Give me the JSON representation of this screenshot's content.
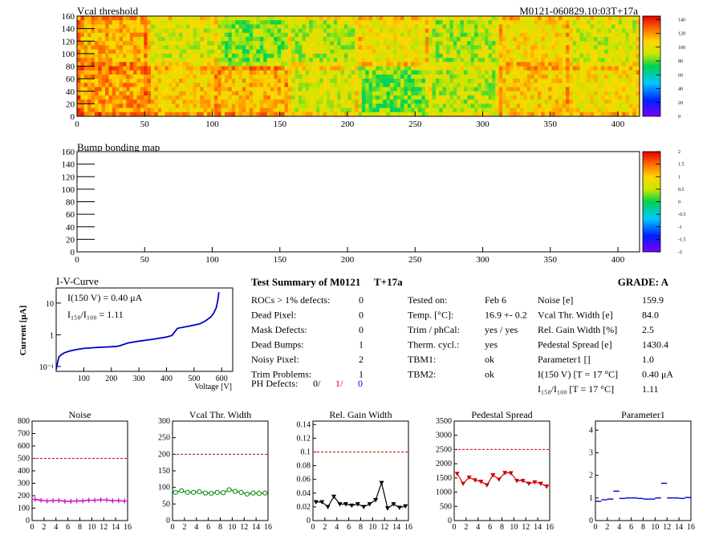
{
  "header": {
    "vcal_title": "Vcal threshold",
    "module_id": "M0121-060829.10:03T+17a",
    "bump_title": "Bump bonding map"
  },
  "map_axes": {
    "y_ticks": [
      "0",
      "20",
      "40",
      "60",
      "80",
      "100",
      "120",
      "140",
      "160"
    ],
    "x_ticks": [
      "0",
      "50",
      "100",
      "150",
      "200",
      "250",
      "300",
      "350",
      "400"
    ],
    "xlim": [
      0,
      416
    ],
    "ylim": [
      0,
      160
    ]
  },
  "vcal_colorbar": {
    "ticks": [
      "0",
      "20",
      "40",
      "60",
      "80",
      "100",
      "120",
      "140"
    ],
    "range": [
      0,
      145
    ]
  },
  "bump_colorbar": {
    "ticks": [
      "-2",
      "-1.5",
      "-1",
      "-0.5",
      "0",
      "0.5",
      "1",
      "1.5",
      "2"
    ],
    "range": [
      -2,
      2
    ]
  },
  "iv_curve": {
    "title": "I-V-Curve",
    "ylabel": "Current [μA]",
    "xlabel": "Voltage [V]",
    "x_ticks": [
      "100",
      "200",
      "300",
      "400",
      "500",
      "600"
    ],
    "y_ticks": [
      "10⁻¹",
      "1",
      "10"
    ],
    "annotation_current": "I(150 V) = 0.40 μA",
    "annotation_ratio": "I₁₅₀/I₁₀₀ =  1.11",
    "line_color": "#0000cc"
  },
  "summary": {
    "title": "Test Summary of M0121",
    "condition": "T+17a",
    "grade_label": "GRADE:  A",
    "rows_left": [
      {
        "label": "ROCs > 1% defects:",
        "value": "0"
      },
      {
        "label": "Dead Pixel:",
        "value": "0"
      },
      {
        "label": "Mask Defects:",
        "value": "0"
      },
      {
        "label": "Dead Bumps:",
        "value": "1"
      },
      {
        "label": "Noisy Pixel:",
        "value": "2"
      },
      {
        "label": "Trim Problems:",
        "value": "1"
      }
    ],
    "ph_defects_label": "PH Defects:",
    "ph_defects_values": [
      "0/",
      "1/",
      "0"
    ],
    "ph_defects_colors": [
      "#000000",
      "#cc0000",
      "#0000cc"
    ],
    "rows_mid": [
      {
        "label": "Tested on:",
        "value": "Feb 6"
      },
      {
        "label": "Temp. [°C]:",
        "value": "16.9 +- 0.2"
      },
      {
        "label": "Trim / phCal:",
        "value": "yes / yes"
      },
      {
        "label": "Therm. cycl.:",
        "value": "yes"
      },
      {
        "label": "TBM1:",
        "value": "ok"
      },
      {
        "label": "TBM2:",
        "value": "ok"
      }
    ],
    "rows_right": [
      {
        "label": "Noise [e]",
        "value": "159.9"
      },
      {
        "label": "Vcal Thr. Width [e]",
        "value": "84.0"
      },
      {
        "label": "Rel. Gain Width [%]",
        "value": "2.5"
      },
      {
        "label": "Pedestal Spread [e]",
        "value": "1430.4"
      },
      {
        "label": "Parameter1 []",
        "value": "1.0"
      },
      {
        "label": "I(150 V) [T = 17 °C]",
        "value": "0.40 μA"
      },
      {
        "label": "I₁₅₀/I₁₀₀  [T = 17 °C]",
        "value": "1.11"
      }
    ]
  },
  "chart_data": [
    {
      "type": "heatmap",
      "title": "Vcal threshold",
      "xlim": [
        0,
        416
      ],
      "ylim": [
        0,
        160
      ],
      "z_range": [
        0,
        145
      ],
      "chips_per_row": 8,
      "rows": [
        {
          "y": [
            80,
            160
          ],
          "chip_means": [
            113,
            96,
            84,
            92,
            101,
            89,
            104,
            95
          ]
        },
        {
          "y": [
            0,
            80
          ],
          "chip_means": [
            118,
            108,
            112,
            96,
            82,
            91,
            107,
            103
          ]
        }
      ]
    },
    {
      "type": "heatmap",
      "title": "Bump bonding map",
      "xlim": [
        0,
        416
      ],
      "ylim": [
        0,
        160
      ],
      "z_range": [
        -2,
        2
      ],
      "values": []
    },
    {
      "type": "line",
      "title": "I-V-Curve",
      "xlabel": "Voltage [V]",
      "ylabel": "Current [μA]",
      "xlim": [
        0,
        640
      ],
      "ylim": [
        0.07,
        30
      ],
      "y_scale": "log",
      "x": [
        0,
        5,
        10,
        20,
        30,
        50,
        80,
        100,
        150,
        200,
        220,
        230,
        260,
        300,
        350,
        400,
        420,
        430,
        440,
        480,
        520,
        540,
        560,
        570,
        580,
        585,
        590
      ],
      "y": [
        0.08,
        0.13,
        0.2,
        0.24,
        0.27,
        0.31,
        0.35,
        0.37,
        0.4,
        0.42,
        0.43,
        0.45,
        0.55,
        0.63,
        0.72,
        0.85,
        0.95,
        1.25,
        1.6,
        1.85,
        2.2,
        2.7,
        3.6,
        4.6,
        7.0,
        11,
        22
      ]
    },
    {
      "type": "line",
      "title": "Noise",
      "x": [
        0,
        1,
        2,
        3,
        4,
        5,
        6,
        7,
        8,
        9,
        10,
        11,
        12,
        13,
        14,
        15
      ],
      "y": [
        170,
        163,
        157,
        160,
        161,
        155,
        155,
        158,
        158,
        164,
        164,
        167,
        165,
        159,
        160,
        157
      ],
      "xlim": [
        0,
        16
      ],
      "ylim": [
        0,
        800
      ],
      "y_ticks": [
        0,
        100,
        200,
        300,
        400,
        500,
        600,
        700,
        800
      ],
      "cut": 500,
      "color": "#cc00cc",
      "marker": "plus"
    },
    {
      "type": "line",
      "title": "Vcal Thr. Width",
      "x": [
        0,
        1,
        2,
        3,
        4,
        5,
        6,
        7,
        8,
        9,
        10,
        11,
        12,
        13,
        14,
        15
      ],
      "y": [
        85,
        90,
        85,
        85,
        87,
        83,
        82,
        85,
        84,
        93,
        88,
        85,
        80,
        83,
        82,
        83
      ],
      "xlim": [
        0,
        16
      ],
      "ylim": [
        0,
        300
      ],
      "y_ticks": [
        0,
        50,
        100,
        150,
        200,
        250,
        300
      ],
      "cut": 200,
      "color": "#008800",
      "marker": "circle"
    },
    {
      "type": "line",
      "title": "Rel. Gain Width",
      "x": [
        0,
        1,
        2,
        3,
        4,
        5,
        6,
        7,
        8,
        9,
        10,
        11,
        12,
        13,
        14,
        15
      ],
      "y": [
        0.027,
        0.027,
        0.02,
        0.035,
        0.024,
        0.024,
        0.022,
        0.024,
        0.02,
        0.024,
        0.03,
        0.055,
        0.018,
        0.024,
        0.019,
        0.021
      ],
      "xlim": [
        0,
        16
      ],
      "ylim": [
        0,
        0.145
      ],
      "y_ticks": [
        0,
        0.02,
        0.04,
        0.06,
        0.08,
        0.1,
        0.12,
        0.14
      ],
      "cut": 0.1,
      "color": "#000000",
      "marker": "triangle"
    },
    {
      "type": "line",
      "title": "Pedestal Spread",
      "x": [
        0,
        1,
        2,
        3,
        4,
        5,
        6,
        7,
        8,
        9,
        10,
        11,
        12,
        13,
        14,
        15
      ],
      "y": [
        1650,
        1300,
        1520,
        1420,
        1370,
        1250,
        1600,
        1450,
        1680,
        1670,
        1400,
        1400,
        1300,
        1350,
        1300,
        1200
      ],
      "xlim": [
        0,
        16
      ],
      "ylim": [
        0,
        3500
      ],
      "y_ticks": [
        0,
        500,
        1000,
        1500,
        2000,
        2500,
        3000,
        3500
      ],
      "cut": 2500,
      "color": "#cc0000",
      "marker": "triangle"
    },
    {
      "type": "scatter",
      "title": "Parameter1",
      "x": [
        0,
        1,
        2,
        3,
        4,
        5,
        6,
        7,
        8,
        9,
        10,
        11,
        12,
        13,
        14,
        15
      ],
      "y": [
        0.85,
        0.92,
        0.95,
        1.3,
        0.98,
        1.0,
        1.0,
        0.98,
        0.95,
        0.95,
        1.0,
        1.65,
        1.0,
        1.0,
        0.98,
        1.02
      ],
      "xlim": [
        0,
        16
      ],
      "ylim": [
        0,
        4.4
      ],
      "y_ticks": [
        0,
        1,
        2,
        3,
        4
      ],
      "color": "#0000cc",
      "marker": "hbar"
    }
  ]
}
